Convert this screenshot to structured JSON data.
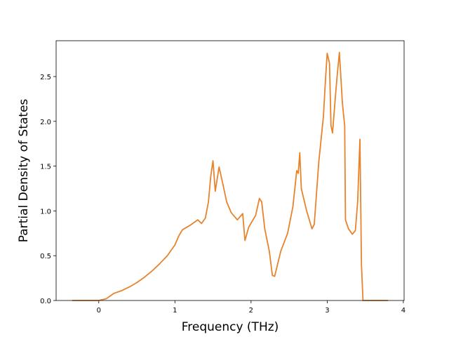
{
  "chart_data": {
    "type": "line",
    "xlabel": "Frequency (THz)",
    "ylabel": "Partial Density of States",
    "x": [
      -0.35,
      0,
      0.1,
      0.2,
      0.3,
      0.4,
      0.5,
      0.6,
      0.7,
      0.8,
      0.9,
      1.0,
      1.05,
      1.1,
      1.2,
      1.3,
      1.35,
      1.4,
      1.44,
      1.47,
      1.5,
      1.53,
      1.58,
      1.63,
      1.68,
      1.74,
      1.82,
      1.89,
      1.92,
      1.97,
      2.06,
      2.11,
      2.14,
      2.18,
      2.24,
      2.28,
      2.31,
      2.39,
      2.48,
      2.55,
      2.6,
      2.62,
      2.64,
      2.66,
      2.73,
      2.8,
      2.83,
      2.89,
      2.95,
      2.98,
      3.0,
      3.03,
      3.05,
      3.07,
      3.11,
      3.13,
      3.16,
      3.2,
      3.23,
      3.24,
      3.28,
      3.33,
      3.37,
      3.4,
      3.43,
      3.45,
      3.47,
      3.8
    ],
    "series": [
      {
        "color": "#e8832b",
        "values": [
          0,
          0,
          0.02,
          0.08,
          0.11,
          0.15,
          0.2,
          0.26,
          0.33,
          0.41,
          0.5,
          0.62,
          0.72,
          0.79,
          0.84,
          0.9,
          0.86,
          0.92,
          1.1,
          1.38,
          1.56,
          1.22,
          1.49,
          1.3,
          1.1,
          0.98,
          0.9,
          0.97,
          0.67,
          0.82,
          0.95,
          1.14,
          1.1,
          0.8,
          0.55,
          0.28,
          0.27,
          0.55,
          0.75,
          1.05,
          1.45,
          1.42,
          1.65,
          1.25,
          1.0,
          0.8,
          0.85,
          1.55,
          2.05,
          2.5,
          2.76,
          2.65,
          1.95,
          1.87,
          2.3,
          2.5,
          2.77,
          2.2,
          1.95,
          0.9,
          0.8,
          0.74,
          0.78,
          1.1,
          1.8,
          0.4,
          0,
          0
        ]
      }
    ],
    "xlim": [
      -0.56,
      4.01
    ],
    "ylim": [
      0,
      2.9
    ],
    "xticks": [
      0,
      1,
      2,
      3,
      4
    ],
    "yticks": [
      {
        "value": 0,
        "label": "0.0"
      },
      0.5,
      {
        "value": 1,
        "label": "1.0"
      },
      1.5,
      {
        "value": 2,
        "label": "2.0"
      },
      2.5
    ]
  }
}
